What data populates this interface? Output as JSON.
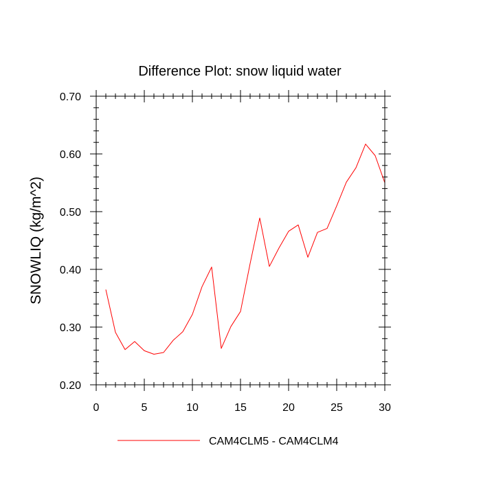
{
  "chart_data": {
    "type": "line",
    "title": "Difference Plot: snow liquid water",
    "xlabel": "",
    "ylabel": "SNOWLIQ  (kg/m^2)",
    "xlim": [
      0,
      30
    ],
    "ylim": [
      0.2,
      0.7
    ],
    "x_ticks": [
      0,
      5,
      10,
      15,
      20,
      25,
      30
    ],
    "x_tick_labels": [
      "0",
      "5",
      "10",
      "15",
      "20",
      "25",
      "30"
    ],
    "y_ticks": [
      0.2,
      0.3,
      0.4,
      0.5,
      0.6,
      0.7
    ],
    "y_tick_labels": [
      "0.20",
      "0.30",
      "0.40",
      "0.50",
      "0.60",
      "0.70"
    ],
    "grid": false,
    "legend_position": "bottom-center",
    "colors": {
      "series": "#ff0000",
      "axis": "#000000"
    },
    "series": [
      {
        "name": "CAM4CLM5 - CAM4CLM4",
        "x": [
          1,
          2,
          3,
          4,
          5,
          6,
          7,
          8,
          9,
          10,
          11,
          12,
          13,
          14,
          15,
          16,
          17,
          18,
          19,
          20,
          21,
          22,
          23,
          24,
          25,
          26,
          27,
          28,
          29,
          30
        ],
        "values": [
          0.365,
          0.291,
          0.261,
          0.275,
          0.259,
          0.253,
          0.256,
          0.277,
          0.292,
          0.322,
          0.37,
          0.404,
          0.263,
          0.301,
          0.327,
          0.41,
          0.489,
          0.405,
          0.437,
          0.466,
          0.477,
          0.421,
          0.464,
          0.471,
          0.51,
          0.551,
          0.576,
          0.617,
          0.597,
          0.55
        ]
      }
    ]
  }
}
